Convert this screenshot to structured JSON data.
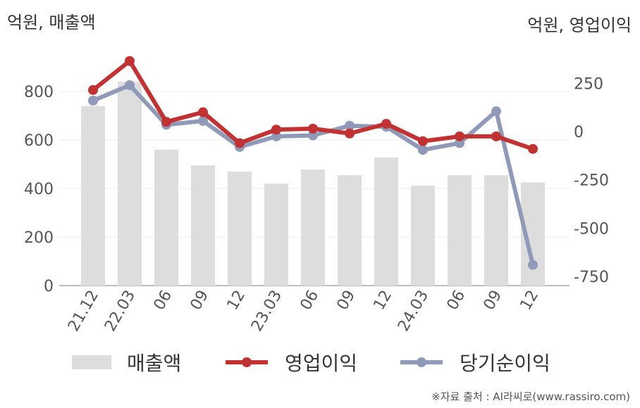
{
  "units": {
    "left": "억원, 매출액",
    "right": "억원, 영업이익"
  },
  "source": "※자료 출처 : AI라씨로(www.rassiro.com)",
  "chart_data": {
    "type": "bar+line",
    "categories": [
      "21.12",
      "22.03",
      "06",
      "09",
      "12",
      "23.03",
      "06",
      "09",
      "12",
      "24.03",
      "06",
      "09",
      "12"
    ],
    "left_axis": {
      "ticks": [
        0,
        200,
        400,
        600,
        800
      ],
      "range": [
        0,
        900
      ]
    },
    "right_axis": {
      "ticks": [
        250,
        0,
        -250,
        -500,
        -750
      ],
      "range": [
        -800,
        400
      ]
    },
    "series": [
      {
        "name": "매출액",
        "type": "bar",
        "axis": "left",
        "color": "#dddddd",
        "values": [
          740,
          840,
          560,
          495,
          470,
          420,
          478,
          455,
          528,
          412,
          455,
          455,
          425
        ]
      },
      {
        "name": "영업이익",
        "type": "line",
        "axis": "right",
        "color": "#c23232",
        "values": [
          215,
          365,
          50,
          100,
          -60,
          10,
          15,
          -10,
          40,
          -50,
          -25,
          -25,
          -90
        ]
      },
      {
        "name": "당기순이익",
        "type": "line",
        "axis": "right",
        "color": "#8f9ab8",
        "values": [
          160,
          240,
          35,
          55,
          -80,
          -25,
          -20,
          30,
          25,
          -95,
          -60,
          105,
          -690
        ]
      }
    ]
  }
}
